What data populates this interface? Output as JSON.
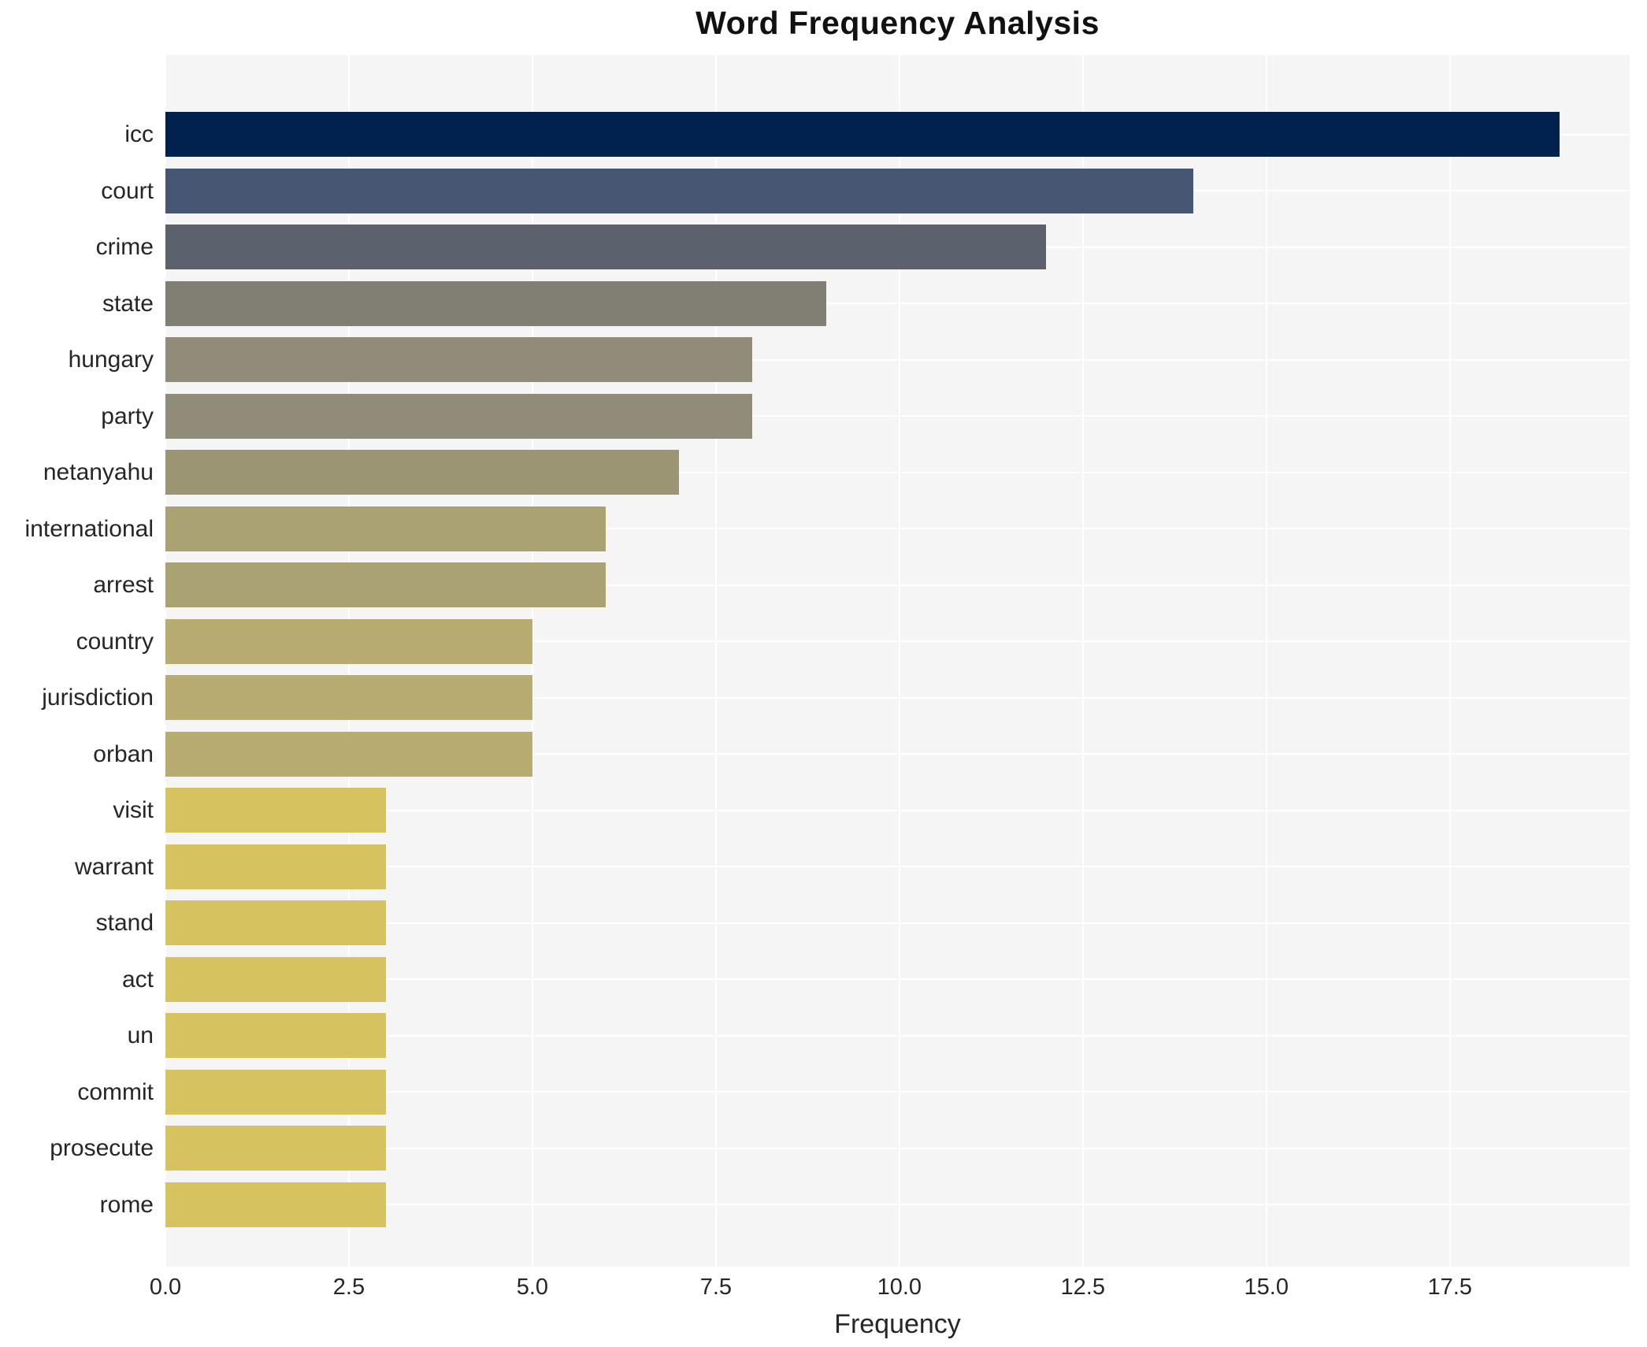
{
  "title": "Word Frequency Analysis",
  "x_axis": {
    "label": "Frequency",
    "ticks": [
      "0.0",
      "2.5",
      "5.0",
      "7.5",
      "10.0",
      "12.5",
      "15.0",
      "17.5"
    ],
    "tick_values": [
      0,
      2.5,
      5.0,
      7.5,
      10.0,
      12.5,
      15.0,
      17.5
    ]
  },
  "chart_data": {
    "type": "bar",
    "orientation": "horizontal",
    "title": "Word Frequency Analysis",
    "xlabel": "Frequency",
    "ylabel": "",
    "xlim": [
      0,
      19.95
    ],
    "grid": true,
    "plot_background": "#f5f5f6",
    "gridline_color": "#ffffff",
    "categories": [
      "icc",
      "court",
      "crime",
      "state",
      "hungary",
      "party",
      "netanyahu",
      "international",
      "arrest",
      "country",
      "jurisdiction",
      "orban",
      "visit",
      "warrant",
      "stand",
      "act",
      "un",
      "commit",
      "prosecute",
      "rome"
    ],
    "values": [
      19,
      14,
      12,
      9,
      8,
      8,
      7,
      6,
      6,
      5,
      5,
      5,
      3,
      3,
      3,
      3,
      3,
      3,
      3,
      3
    ],
    "bar_colors": [
      "#01224e",
      "#475672",
      "#5c616e",
      "#817e74",
      "#918b79",
      "#918b79",
      "#9c9574",
      "#aba273",
      "#aba273",
      "#b7ab70",
      "#b7ab70",
      "#b7ab70",
      "#d6c35f",
      "#d6c35f",
      "#d6c35f",
      "#d6c35f",
      "#d6c35f",
      "#d6c35f",
      "#d6c35f",
      "#d6c35f"
    ]
  }
}
